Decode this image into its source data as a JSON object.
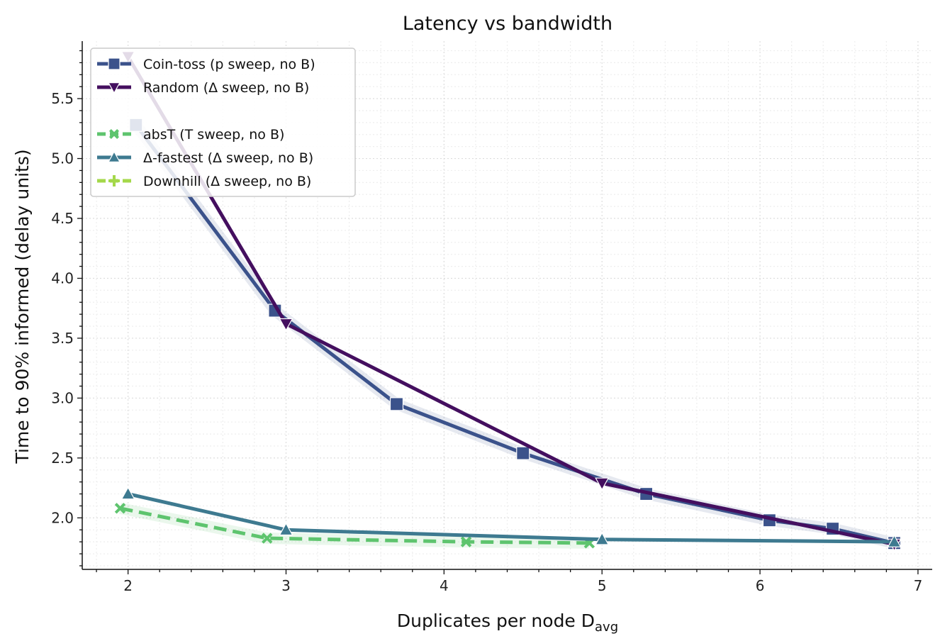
{
  "chart_data": {
    "type": "line",
    "title": "Latency vs bandwidth",
    "xlabel": "Duplicates per node D",
    "xlabel_subscript": "avg",
    "ylabel": "Time to 90% informed (delay units)",
    "xlim": [
      1.71,
      7.09
    ],
    "ylim": [
      1.57,
      5.98
    ],
    "x_ticks": [
      "2",
      "3",
      "4",
      "5",
      "6",
      "7"
    ],
    "y_ticks": [
      "2.0",
      "2.5",
      "3.0",
      "3.5",
      "4.0",
      "4.5",
      "5.0",
      "5.5"
    ],
    "grid": true,
    "legend_position": "top-left",
    "series": [
      {
        "name": "Coin-toss (p sweep, no B)",
        "color": "#3b528b",
        "marker": "square",
        "dash": "solid",
        "band": true,
        "x": [
          2.05,
          2.93,
          3.7,
          4.5,
          5.28,
          6.06,
          6.46,
          6.85
        ],
        "y": [
          5.28,
          3.73,
          2.95,
          2.54,
          2.2,
          1.98,
          1.91,
          1.79
        ]
      },
      {
        "name": "Random (Δ sweep, no B)",
        "color": "#440f5f",
        "marker": "triangle-down",
        "dash": "solid",
        "band": false,
        "x": [
          2.0,
          3.0,
          5.0,
          6.85
        ],
        "y": [
          5.85,
          3.62,
          2.29,
          1.78
        ]
      },
      {
        "name": "absT (T sweep, no B)",
        "color": "#5ec46e",
        "marker": "x",
        "dash": "dashed",
        "band": true,
        "x": [
          1.95,
          2.88,
          4.14,
          4.92
        ],
        "y": [
          2.08,
          1.83,
          1.8,
          1.79
        ]
      },
      {
        "name": "Δ-fastest (Δ sweep, no B)",
        "color": "#3e7a90",
        "marker": "triangle-up",
        "dash": "solid",
        "band": false,
        "x": [
          2.0,
          3.0,
          5.0,
          6.85
        ],
        "y": [
          2.2,
          1.9,
          1.82,
          1.8
        ]
      },
      {
        "name": "Downhill (Δ sweep, no B)",
        "color": "#a4d84a",
        "marker": "plus",
        "dash": "dashed",
        "band": false,
        "x": [],
        "y": []
      }
    ]
  }
}
